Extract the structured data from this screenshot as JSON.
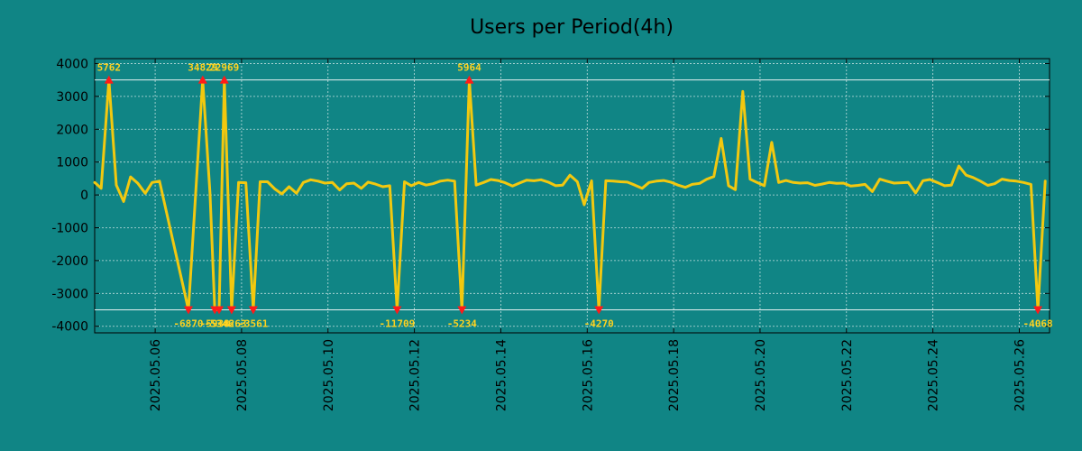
{
  "chart_data": {
    "type": "line",
    "title": "Users per Period(4h)",
    "xlabel": "",
    "ylabel": "",
    "ylim": [
      -4200,
      4150
    ],
    "clip_levels": [
      3500,
      -3500
    ],
    "y_ticks": [
      4000,
      3000,
      2000,
      1000,
      0,
      -1000,
      -2000,
      -3000,
      -4000
    ],
    "x_range_days": [
      4.6,
      26.7
    ],
    "x_ticks": [
      {
        "day": 6,
        "label": "2025.05.06"
      },
      {
        "day": 8,
        "label": "2025.05.08"
      },
      {
        "day": 10,
        "label": "2025.05.10"
      },
      {
        "day": 12,
        "label": "2025.05.12"
      },
      {
        "day": 14,
        "label": "2025.05.14"
      },
      {
        "day": 16,
        "label": "2025.05.16"
      },
      {
        "day": 18,
        "label": "2025.05.18"
      },
      {
        "day": 20,
        "label": "2025.05.20"
      },
      {
        "day": 22,
        "label": "2025.05.22"
      },
      {
        "day": 24,
        "label": "2025.05.24"
      },
      {
        "day": 26,
        "label": "2025.05.26"
      }
    ],
    "series": [
      {
        "name": "Users per Period(4h)",
        "color": "#f2c80f",
        "points": [
          [
            4.6,
            380
          ],
          [
            4.75,
            200
          ],
          [
            4.93,
            3500
          ],
          [
            5.1,
            300
          ],
          [
            5.27,
            -200
          ],
          [
            5.43,
            550
          ],
          [
            5.6,
            350
          ],
          [
            5.77,
            50
          ],
          [
            5.93,
            380
          ],
          [
            6.1,
            420
          ],
          [
            6.77,
            -3500
          ],
          [
            7.1,
            3500
          ],
          [
            7.27,
            50
          ],
          [
            7.38,
            -3500
          ],
          [
            7.48,
            -3500
          ],
          [
            7.6,
            3500
          ],
          [
            7.77,
            -3500
          ],
          [
            7.93,
            380
          ],
          [
            8.1,
            370
          ],
          [
            8.27,
            -3500
          ],
          [
            8.43,
            400
          ],
          [
            8.6,
            400
          ],
          [
            8.77,
            180
          ],
          [
            8.93,
            30
          ],
          [
            9.1,
            250
          ],
          [
            9.27,
            50
          ],
          [
            9.43,
            380
          ],
          [
            9.6,
            460
          ],
          [
            9.77,
            420
          ],
          [
            9.93,
            360
          ],
          [
            10.1,
            380
          ],
          [
            10.27,
            150
          ],
          [
            10.43,
            340
          ],
          [
            10.6,
            360
          ],
          [
            10.77,
            200
          ],
          [
            10.93,
            390
          ],
          [
            11.1,
            330
          ],
          [
            11.27,
            250
          ],
          [
            11.43,
            280
          ],
          [
            11.6,
            -3500
          ],
          [
            11.77,
            400
          ],
          [
            11.93,
            280
          ],
          [
            12.1,
            380
          ],
          [
            12.27,
            300
          ],
          [
            12.43,
            340
          ],
          [
            12.6,
            420
          ],
          [
            12.77,
            450
          ],
          [
            12.93,
            420
          ],
          [
            13.1,
            -3500
          ],
          [
            13.27,
            3500
          ],
          [
            13.43,
            300
          ],
          [
            13.6,
            380
          ],
          [
            13.77,
            470
          ],
          [
            13.93,
            440
          ],
          [
            14.1,
            370
          ],
          [
            14.27,
            270
          ],
          [
            14.43,
            360
          ],
          [
            14.6,
            450
          ],
          [
            14.77,
            430
          ],
          [
            14.93,
            460
          ],
          [
            15.1,
            390
          ],
          [
            15.27,
            280
          ],
          [
            15.43,
            300
          ],
          [
            15.6,
            600
          ],
          [
            15.77,
            400
          ],
          [
            15.93,
            -300
          ],
          [
            16.1,
            430
          ],
          [
            16.27,
            -3500
          ],
          [
            16.43,
            430
          ],
          [
            16.6,
            420
          ],
          [
            16.77,
            400
          ],
          [
            16.93,
            390
          ],
          [
            17.1,
            300
          ],
          [
            17.27,
            200
          ],
          [
            17.43,
            380
          ],
          [
            17.6,
            420
          ],
          [
            17.77,
            440
          ],
          [
            17.93,
            390
          ],
          [
            18.1,
            300
          ],
          [
            18.27,
            230
          ],
          [
            18.43,
            320
          ],
          [
            18.6,
            350
          ],
          [
            18.77,
            480
          ],
          [
            18.93,
            560
          ],
          [
            19.1,
            1720
          ],
          [
            19.27,
            280
          ],
          [
            19.43,
            160
          ],
          [
            19.6,
            3150
          ],
          [
            19.77,
            480
          ],
          [
            19.93,
            380
          ],
          [
            20.1,
            280
          ],
          [
            20.27,
            1600
          ],
          [
            20.43,
            380
          ],
          [
            20.6,
            440
          ],
          [
            20.77,
            380
          ],
          [
            20.93,
            360
          ],
          [
            21.1,
            370
          ],
          [
            21.27,
            290
          ],
          [
            21.43,
            330
          ],
          [
            21.6,
            380
          ],
          [
            21.77,
            350
          ],
          [
            21.93,
            360
          ],
          [
            22.1,
            270
          ],
          [
            22.27,
            290
          ],
          [
            22.43,
            320
          ],
          [
            22.6,
            100
          ],
          [
            22.77,
            480
          ],
          [
            22.93,
            420
          ],
          [
            23.1,
            360
          ],
          [
            23.27,
            370
          ],
          [
            23.43,
            380
          ],
          [
            23.6,
            60
          ],
          [
            23.77,
            430
          ],
          [
            23.93,
            470
          ],
          [
            24.1,
            380
          ],
          [
            24.27,
            280
          ],
          [
            24.43,
            300
          ],
          [
            24.6,
            880
          ],
          [
            24.77,
            600
          ],
          [
            24.93,
            530
          ],
          [
            25.1,
            420
          ],
          [
            25.27,
            290
          ],
          [
            25.43,
            340
          ],
          [
            25.6,
            480
          ],
          [
            25.77,
            440
          ],
          [
            25.93,
            420
          ],
          [
            26.1,
            380
          ],
          [
            26.27,
            320
          ],
          [
            26.43,
            -3500
          ],
          [
            26.6,
            420
          ]
        ]
      }
    ],
    "annotations": [
      {
        "day": 4.93,
        "marker": "up",
        "text": "5762",
        "position": "above"
      },
      {
        "day": 7.1,
        "marker": "up",
        "text": "34829",
        "position": "above"
      },
      {
        "day": 7.6,
        "marker": "up",
        "text": "22969",
        "position": "above"
      },
      {
        "day": 13.27,
        "marker": "up",
        "text": "5964",
        "position": "above"
      },
      {
        "day": 6.77,
        "marker": "down",
        "text": "-6870",
        "position": "below"
      },
      {
        "day": 7.38,
        "marker": "down",
        "text": "-5938",
        "position": "below"
      },
      {
        "day": 7.48,
        "marker": "down",
        "text": "-5346",
        "position": "below"
      },
      {
        "day": 7.77,
        "marker": "down",
        "text": "-4263",
        "position": "below"
      },
      {
        "day": 8.27,
        "marker": "down",
        "text": "-3561",
        "position": "below"
      },
      {
        "day": 11.6,
        "marker": "down",
        "text": "-11709",
        "position": "below"
      },
      {
        "day": 13.1,
        "marker": "down",
        "text": "-5234",
        "position": "below"
      },
      {
        "day": 16.27,
        "marker": "down",
        "text": "-4270",
        "position": "below"
      },
      {
        "day": 26.43,
        "marker": "down",
        "text": "-4068",
        "position": "below"
      }
    ]
  }
}
